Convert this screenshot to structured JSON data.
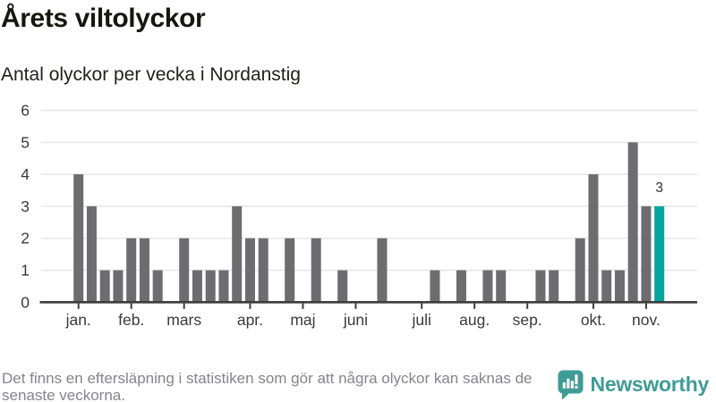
{
  "header": {
    "title": "Årets viltolyckor",
    "subtitle": "Antal olyckor per vecka i Nordanstig"
  },
  "chart_data": {
    "type": "bar",
    "title": "Årets viltolyckor",
    "subtitle": "Antal olyckor per vecka i Nordanstig",
    "x_unit": "vecka",
    "first_week": 1,
    "values": [
      4,
      3,
      1,
      1,
      2,
      2,
      1,
      0,
      2,
      1,
      1,
      1,
      3,
      2,
      2,
      0,
      2,
      0,
      2,
      0,
      1,
      0,
      0,
      2,
      0,
      0,
      0,
      1,
      0,
      1,
      0,
      1,
      1,
      0,
      0,
      1,
      1,
      0,
      2,
      4,
      1,
      1,
      5,
      3,
      3
    ],
    "highlight": {
      "index": 44,
      "value": 3,
      "label": "3"
    },
    "month_ticks": [
      {
        "label": "jan.",
        "week": 1
      },
      {
        "label": "feb.",
        "week": 5
      },
      {
        "label": "mars",
        "week": 9
      },
      {
        "label": "apr.",
        "week": 14
      },
      {
        "label": "maj",
        "week": 18
      },
      {
        "label": "juni",
        "week": 22
      },
      {
        "label": "juli",
        "week": 27
      },
      {
        "label": "aug.",
        "week": 31
      },
      {
        "label": "sep.",
        "week": 35
      },
      {
        "label": "okt.",
        "week": 40
      },
      {
        "label": "nov.",
        "week": 44
      }
    ],
    "yticks": [
      0,
      1,
      2,
      3,
      4,
      5,
      6
    ],
    "ylim": [
      0,
      6
    ],
    "grid": true,
    "legend": "none",
    "colors": {
      "bar": "#6c6c71",
      "highlight": "#00a49c",
      "grid": "#e8e8ea",
      "axis": "#3d3d3d",
      "tick_text": "#3a3a3a",
      "value_label": "#2e2e2e"
    }
  },
  "footer": {
    "note_lines": [
      "Det finns en eftersläpning i statistiken som gör att några olyckor kan saknas de",
      "senaste veckorna."
    ],
    "brand": {
      "name": "Newsworthy",
      "color": "#3f9b96"
    }
  }
}
